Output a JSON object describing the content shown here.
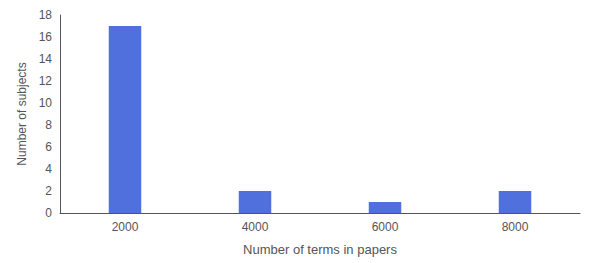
{
  "chart_data": {
    "type": "bar",
    "categories": [
      "2000",
      "4000",
      "6000",
      "8000"
    ],
    "values": [
      17,
      2,
      1,
      2
    ],
    "xlabel": "Number of terms in papers",
    "ylabel": "Number of subjects",
    "ylim": [
      0,
      18
    ],
    "yticks": [
      0,
      2,
      4,
      6,
      8,
      10,
      12,
      14,
      16,
      18
    ],
    "grid": false
  }
}
